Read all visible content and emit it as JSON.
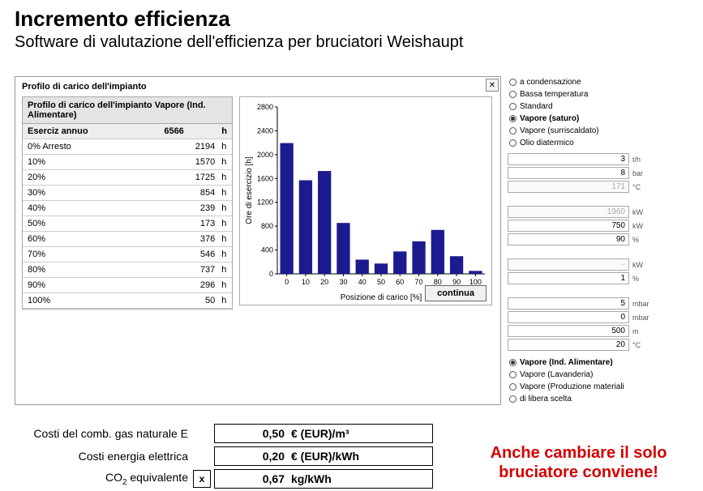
{
  "title": "Incremento efficienza",
  "subtitle": "Software di valutazione dell'efficienza per bruciatori Weishaupt",
  "panel": {
    "outer_title": "Profilo di carico dell'impianto",
    "inner_title": "Profilo di carico dell'impianto Vapore (Ind. Alimentare)",
    "close_glyph": "✕",
    "header_label": "Eserciz annuo",
    "header_value": "6566",
    "header_unit": "h",
    "rows": [
      {
        "label": "0% Arresto",
        "value": "2194",
        "unit": "h"
      },
      {
        "label": "10%",
        "value": "1570",
        "unit": "h"
      },
      {
        "label": "20%",
        "value": "1725",
        "unit": "h"
      },
      {
        "label": "30%",
        "value": "854",
        "unit": "h"
      },
      {
        "label": "40%",
        "value": "239",
        "unit": "h"
      },
      {
        "label": "50%",
        "value": "173",
        "unit": "h"
      },
      {
        "label": "60%",
        "value": "376",
        "unit": "h"
      },
      {
        "label": "70%",
        "value": "546",
        "unit": "h"
      },
      {
        "label": "80%",
        "value": "737",
        "unit": "h"
      },
      {
        "label": "90%",
        "value": "296",
        "unit": "h"
      },
      {
        "label": "100%",
        "value": "50",
        "unit": "h"
      }
    ],
    "continue_label": "continua"
  },
  "chart": {
    "type": "bar",
    "y_label": "Ore di esercizio [h]",
    "x_label": "Posizione di carico [%]",
    "categories": [
      "0",
      "10",
      "20",
      "30",
      "40",
      "50",
      "60",
      "70",
      "80",
      "90",
      "100"
    ],
    "values": [
      2194,
      1570,
      1725,
      854,
      239,
      173,
      376,
      546,
      737,
      296,
      50
    ],
    "bar_color": "#1b1b8f",
    "y_max": 2800,
    "y_ticks": [
      0,
      400,
      800,
      1200,
      1600,
      2000,
      2400,
      2800
    ],
    "background_color": "#ffffff",
    "grid_color": null,
    "axis_color": "#000000",
    "bar_width_ratio": 0.7,
    "label_fontsize": 9,
    "title_fontsize": 10
  },
  "right": {
    "group1": [
      {
        "label": "a condensazione",
        "selected": false
      },
      {
        "label": "Bassa temperatura",
        "selected": false
      },
      {
        "label": "Standard",
        "selected": false
      },
      {
        "label": "Vapore (saturo)",
        "selected": true
      },
      {
        "label": "Vapore (surriscaldato)",
        "selected": false
      },
      {
        "label": "Olio diatermico",
        "selected": false
      }
    ],
    "params1": [
      {
        "value": "3",
        "unit": "t/h",
        "grey": false
      },
      {
        "value": "8",
        "unit": "bar",
        "grey": false
      },
      {
        "value": "171",
        "unit": "°C",
        "grey": true
      }
    ],
    "params2": [
      {
        "value": "1960",
        "unit": "kW",
        "grey": true
      },
      {
        "value": "750",
        "unit": "kW",
        "grey": false
      },
      {
        "value": "90",
        "unit": "%",
        "grey": false
      }
    ],
    "params3": [
      {
        "value": "-",
        "unit": "kW",
        "grey": true
      },
      {
        "value": "1",
        "unit": "%",
        "grey": false
      }
    ],
    "params4": [
      {
        "value": "5",
        "unit": "mbar",
        "grey": false
      },
      {
        "value": "0",
        "unit": "mbar",
        "grey": false
      },
      {
        "value": "500",
        "unit": "m",
        "grey": false
      },
      {
        "value": "20",
        "unit": "°C",
        "grey": false
      }
    ],
    "group2": [
      {
        "label": "Vapore (Ind. Alimentare)",
        "selected": true
      },
      {
        "label": "Vapore (Lavanderia)",
        "selected": false
      },
      {
        "label": "Vapore (Produzione materiali",
        "selected": false
      },
      {
        "label": "di libera scelta",
        "selected": false
      }
    ]
  },
  "costs": {
    "rows": [
      {
        "label": "Costi del comb. gas naturale E",
        "checkbox": null,
        "value": "0,50",
        "unit": "€ (EUR)/m³"
      },
      {
        "label": "Costi energia elettrica",
        "checkbox": null,
        "value": "0,20",
        "unit": "€ (EUR)/kWh"
      },
      {
        "label_html": "CO<sub>2</sub> equivalente",
        "checkbox": "x",
        "value": "0,67",
        "unit": "kg/kWh"
      }
    ]
  },
  "callout": "Anche cambiare il solo bruciatore conviene!",
  "colors": {
    "accent_red": "#d40000",
    "panel_border": "#999999",
    "row_border": "#cccccc",
    "header_bg": "#e4e4e4"
  }
}
